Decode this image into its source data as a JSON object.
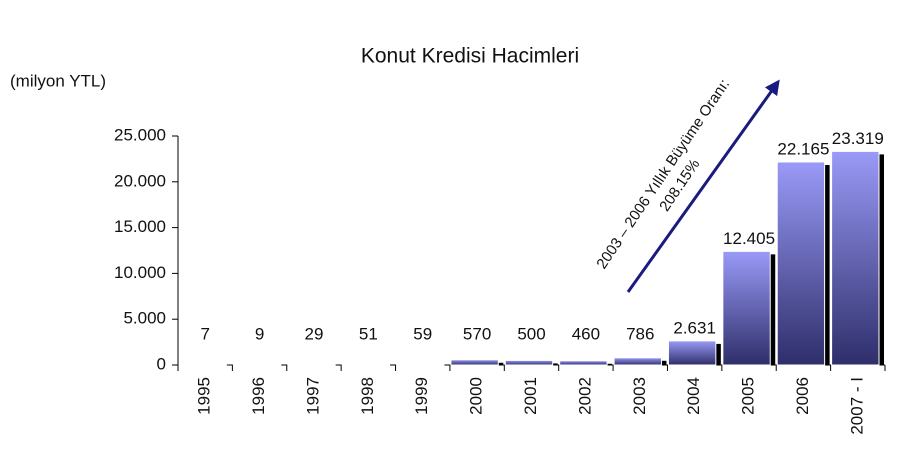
{
  "chart_data": {
    "type": "bar",
    "title": "Konut Kredisi Hacimleri",
    "y_axis_label": "(milyon YTL)",
    "categories": [
      "1995",
      "1996",
      "1997",
      "1998",
      "1999",
      "2000",
      "2001",
      "2002",
      "2003",
      "2004",
      "2005",
      "2006",
      "2007 - I"
    ],
    "values": [
      7,
      9,
      29,
      51,
      59,
      570,
      500,
      460,
      786,
      2631,
      12405,
      22165,
      23319
    ],
    "value_labels": [
      "7",
      "9",
      "29",
      "51",
      "59",
      "570",
      "500",
      "460",
      "786",
      "2.631",
      "12.405",
      "22.165",
      "23.319"
    ],
    "color": "#8888ee",
    "ylim": [
      0,
      25000
    ],
    "yticks": [
      0,
      {
        "value": 5000,
        "label": "5.000"
      },
      {
        "value": 10000,
        "label": "10.000"
      },
      {
        "value": 15000,
        "label": "15.000"
      },
      {
        "value": 20000,
        "label": "20.000"
      },
      {
        "value": 25000,
        "label": "25.000"
      }
    ],
    "annotations": [
      "2003 – 2006 Yıllık Büyüme Oranı:",
      "208.15%"
    ]
  }
}
